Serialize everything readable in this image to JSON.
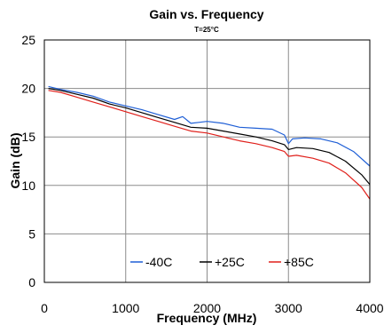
{
  "chart_data": {
    "type": "line",
    "title": "Gain vs. Frequency",
    "subtitle": "T=25°C",
    "xlabel": "Frequency (MHz)",
    "ylabel": "Gain (dB)",
    "xlim": [
      0,
      4000
    ],
    "ylim": [
      0,
      25
    ],
    "x_ticks": [
      "0",
      "1000",
      "2000",
      "3000",
      "4000"
    ],
    "y_ticks": [
      "0",
      "5",
      "10",
      "15",
      "20",
      "25"
    ],
    "grid": true,
    "legend_position": "bottom-center",
    "series": [
      {
        "name": "-40C",
        "color": "#1f5fd6",
        "points": [
          [
            50,
            20.2
          ],
          [
            200,
            19.9
          ],
          [
            400,
            19.6
          ],
          [
            600,
            19.2
          ],
          [
            800,
            18.6
          ],
          [
            1000,
            18.2
          ],
          [
            1200,
            17.8
          ],
          [
            1400,
            17.3
          ],
          [
            1600,
            16.8
          ],
          [
            1700,
            17.1
          ],
          [
            1800,
            16.4
          ],
          [
            1900,
            16.5
          ],
          [
            2000,
            16.6
          ],
          [
            2200,
            16.4
          ],
          [
            2400,
            16.0
          ],
          [
            2600,
            15.9
          ],
          [
            2800,
            15.8
          ],
          [
            2950,
            15.2
          ],
          [
            3000,
            14.3
          ],
          [
            3050,
            14.8
          ],
          [
            3200,
            14.9
          ],
          [
            3400,
            14.8
          ],
          [
            3600,
            14.4
          ],
          [
            3800,
            13.5
          ],
          [
            4000,
            12.0
          ]
        ]
      },
      {
        "name": "+25C",
        "color": "#000000",
        "points": [
          [
            50,
            20.0
          ],
          [
            200,
            19.8
          ],
          [
            400,
            19.4
          ],
          [
            600,
            19.0
          ],
          [
            800,
            18.4
          ],
          [
            1000,
            18.0
          ],
          [
            1200,
            17.5
          ],
          [
            1400,
            17.0
          ],
          [
            1600,
            16.5
          ],
          [
            1800,
            16.0
          ],
          [
            2000,
            15.9
          ],
          [
            2200,
            15.6
          ],
          [
            2400,
            15.3
          ],
          [
            2600,
            15.0
          ],
          [
            2800,
            14.6
          ],
          [
            2950,
            14.2
          ],
          [
            3000,
            13.7
          ],
          [
            3100,
            13.9
          ],
          [
            3300,
            13.8
          ],
          [
            3500,
            13.4
          ],
          [
            3700,
            12.5
          ],
          [
            3900,
            11.1
          ],
          [
            4000,
            10.1
          ]
        ]
      },
      {
        "name": "+85C",
        "color": "#e0201b",
        "points": [
          [
            50,
            19.8
          ],
          [
            200,
            19.6
          ],
          [
            400,
            19.1
          ],
          [
            600,
            18.6
          ],
          [
            800,
            18.1
          ],
          [
            1000,
            17.6
          ],
          [
            1200,
            17.1
          ],
          [
            1400,
            16.6
          ],
          [
            1600,
            16.1
          ],
          [
            1800,
            15.6
          ],
          [
            2000,
            15.4
          ],
          [
            2200,
            15.0
          ],
          [
            2400,
            14.6
          ],
          [
            2600,
            14.3
          ],
          [
            2800,
            13.9
          ],
          [
            2950,
            13.5
          ],
          [
            3000,
            13.0
          ],
          [
            3100,
            13.1
          ],
          [
            3300,
            12.8
          ],
          [
            3500,
            12.3
          ],
          [
            3700,
            11.3
          ],
          [
            3900,
            9.8
          ],
          [
            4000,
            8.6
          ]
        ]
      }
    ]
  }
}
